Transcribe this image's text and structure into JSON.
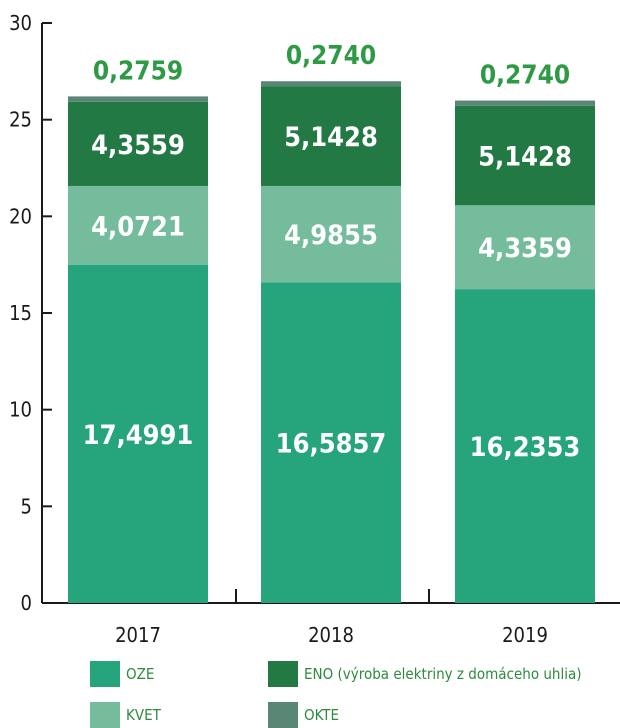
{
  "chart_data": {
    "type": "bar",
    "stacked": true,
    "categories": [
      "2017",
      "2018",
      "2019"
    ],
    "series": [
      {
        "name": "OZE",
        "values": [
          17.4991,
          16.5857,
          16.2353
        ],
        "labels": [
          "17,4991",
          "16,5857",
          "16,2353"
        ],
        "color": "#26a57c"
      },
      {
        "name": "KVET",
        "values": [
          4.0721,
          4.9855,
          4.3359
        ],
        "labels": [
          "4,0721",
          "4,9855",
          "4,3359"
        ],
        "color": "#74bc9b"
      },
      {
        "name": "ENO (výroba elektriny z domáceho uhlia)",
        "values": [
          4.3559,
          5.1428,
          5.1428
        ],
        "labels": [
          "4,3559",
          "5,1428",
          "5,1428"
        ],
        "color": "#227944"
      },
      {
        "name": "OKTE",
        "values": [
          0.2759,
          0.274,
          0.274
        ],
        "labels": [
          "0,2759",
          "0,2740",
          "0,2740"
        ],
        "color": "#5a8676"
      }
    ],
    "yticks": [
      "0",
      "5",
      "10",
      "15",
      "20",
      "25",
      "30"
    ],
    "ylim": [
      0,
      30
    ],
    "grid": false,
    "legend": "bottom",
    "colors": {
      "bar_label": "#ffffff",
      "top_label": "#2e9a45",
      "axis": "#1a1a1a"
    }
  }
}
